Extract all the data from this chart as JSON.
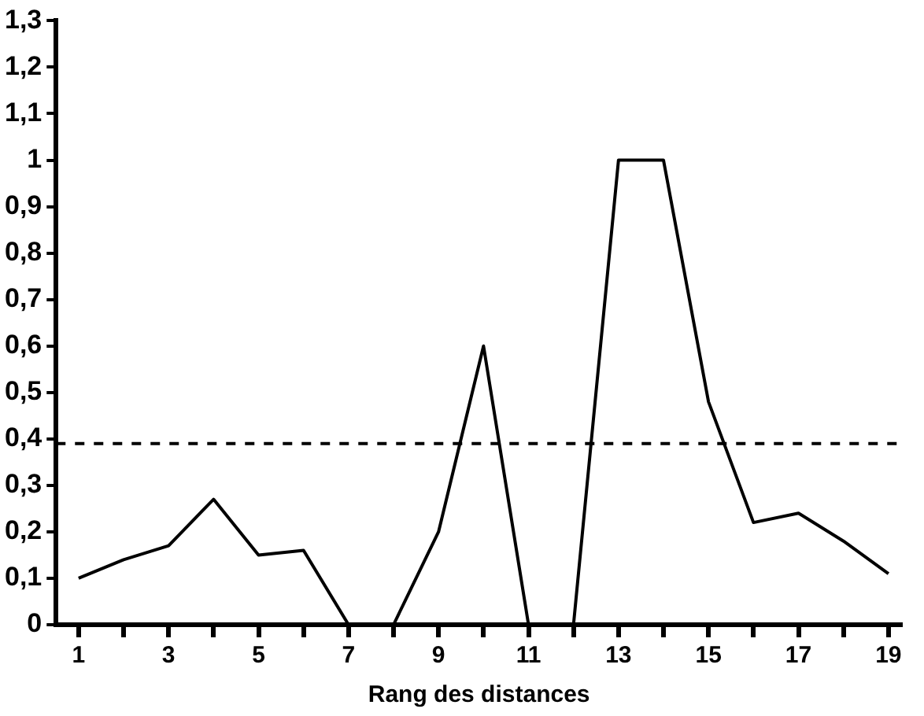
{
  "chart_data": {
    "type": "line",
    "xlabel": "Rang des distances",
    "x": [
      1,
      2,
      3,
      4,
      5,
      6,
      7,
      8,
      9,
      10,
      11,
      12,
      13,
      14,
      15,
      16,
      17,
      18,
      19
    ],
    "values": [
      0.1,
      0.14,
      0.17,
      0.27,
      0.15,
      0.16,
      0,
      0,
      0.2,
      0.6,
      0,
      0,
      1.0,
      1.0,
      0.48,
      0.22,
      0.24,
      0.18,
      0.11
    ],
    "color": "#000000",
    "marker": "none",
    "line_style": "solid",
    "grid": false,
    "legend": false,
    "xlim": [
      0.5,
      19.3
    ],
    "xticks": [
      {
        "value": 1,
        "label": "1"
      },
      {
        "value": 2,
        "label": null
      },
      {
        "value": 3,
        "label": "3"
      },
      {
        "value": 4,
        "label": null
      },
      {
        "value": 5,
        "label": "5"
      },
      {
        "value": 6,
        "label": null
      },
      {
        "value": 7,
        "label": "7"
      },
      {
        "value": 8,
        "label": null
      },
      {
        "value": 9,
        "label": "9"
      },
      {
        "value": 10,
        "label": null
      },
      {
        "value": 11,
        "label": "11"
      },
      {
        "value": 12,
        "label": null
      },
      {
        "value": 13,
        "label": "13"
      },
      {
        "value": 14,
        "label": null
      },
      {
        "value": 15,
        "label": "15"
      },
      {
        "value": 16,
        "label": null
      },
      {
        "value": 17,
        "label": "17"
      },
      {
        "value": 18,
        "label": null
      },
      {
        "value": 19,
        "label": "19"
      }
    ],
    "ylim": [
      0,
      1.3
    ],
    "yticks": [
      {
        "value": 0,
        "label": "0"
      },
      {
        "value": 0.1,
        "label": "0,1"
      },
      {
        "value": 0.2,
        "label": "0,2"
      },
      {
        "value": 0.3,
        "label": "0,3"
      },
      {
        "value": 0.4,
        "label": "0,4"
      },
      {
        "value": 0.5,
        "label": "0,5"
      },
      {
        "value": 0.6,
        "label": "0,6"
      },
      {
        "value": 0.7,
        "label": "0,7"
      },
      {
        "value": 0.8,
        "label": "0,8"
      },
      {
        "value": 0.9,
        "label": "0,9"
      },
      {
        "value": 1,
        "label": "1"
      },
      {
        "value": 1.1,
        "label": "1,1"
      },
      {
        "value": 1.2,
        "label": "1,2"
      },
      {
        "value": 1.3,
        "label": "1,3"
      }
    ],
    "ref_lines": [
      {
        "axis": "y",
        "value": 0.39,
        "line_style": "dashed",
        "color": "#000000"
      }
    ]
  }
}
